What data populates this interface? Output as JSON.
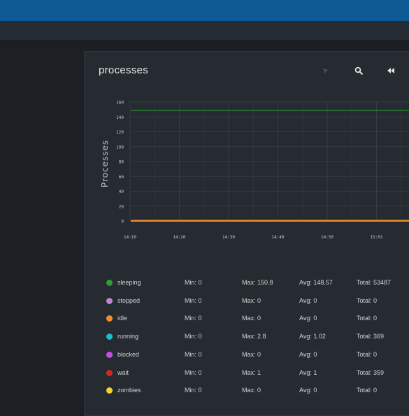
{
  "panel": {
    "title": "processes"
  },
  "toolbar": {
    "icons": [
      "pointer-icon",
      "zoom-icon",
      "rewind-icon"
    ]
  },
  "colors": {
    "topbar": "#0f5a94",
    "background": "#1c1f24",
    "panel": "#262b31"
  },
  "chart_data": {
    "type": "line",
    "ylabel": "Processes",
    "ylim": [
      0,
      160
    ],
    "yticks": [
      "0",
      "20",
      "40",
      "60",
      "80",
      "100",
      "120",
      "140",
      "160"
    ],
    "xticks": [
      "14:10",
      "14:20",
      "14:30",
      "14:40",
      "14:50",
      "15:01"
    ],
    "grid": true,
    "series": [
      {
        "name": "sleeping",
        "color": "#2ca02c",
        "values": [
          149,
          149,
          149,
          149,
          149,
          149,
          149,
          149,
          149,
          149,
          149
        ]
      },
      {
        "name": "stopped",
        "color": "#c086c9",
        "values": [
          0,
          0,
          0,
          0,
          0,
          0,
          0,
          0,
          0,
          0,
          0
        ]
      },
      {
        "name": "idle",
        "color": "#f28e2b",
        "values": [
          0,
          0,
          0,
          0,
          0,
          0,
          0,
          0,
          0,
          0,
          0
        ]
      },
      {
        "name": "running",
        "color": "#17becf",
        "values": [
          1,
          1,
          1,
          1,
          1,
          1,
          1,
          1,
          1,
          1,
          1
        ]
      },
      {
        "name": "blocked",
        "color": "#c54ce6",
        "values": [
          0,
          0,
          0,
          0,
          0,
          0,
          0,
          0,
          0,
          0,
          0
        ]
      },
      {
        "name": "wait",
        "color": "#d62728",
        "values": [
          1,
          1,
          1,
          1,
          1,
          1,
          1,
          1,
          1,
          1,
          1
        ]
      },
      {
        "name": "zombies",
        "color": "#f2d22e",
        "values": [
          0,
          0,
          0,
          0,
          0,
          0,
          0,
          0,
          0,
          0,
          0
        ]
      }
    ]
  },
  "legend": [
    {
      "name": "sleeping",
      "color": "#2ca02c",
      "min": "Min: 0",
      "max": "Max: 150.8",
      "avg": "Avg: 148.57",
      "total": "Total: 53487"
    },
    {
      "name": "stopped",
      "color": "#c086c9",
      "min": "Min: 0",
      "max": "Max: 0",
      "avg": "Avg: 0",
      "total": "Total: 0"
    },
    {
      "name": "idle",
      "color": "#f28e2b",
      "min": "Min: 0",
      "max": "Max: 0",
      "avg": "Avg: 0",
      "total": "Total: 0"
    },
    {
      "name": "running",
      "color": "#17becf",
      "min": "Min: 0",
      "max": "Max: 2.8",
      "avg": "Avg: 1.02",
      "total": "Total: 369"
    },
    {
      "name": "blocked",
      "color": "#c54ce6",
      "min": "Min: 0",
      "max": "Max: 0",
      "avg": "Avg: 0",
      "total": "Total: 0"
    },
    {
      "name": "wait",
      "color": "#d62728",
      "min": "Min: 0",
      "max": "Max: 1",
      "avg": "Avg: 1",
      "total": "Total: 359"
    },
    {
      "name": "zombies",
      "color": "#f2d22e",
      "min": "Min: 0",
      "max": "Max: 0",
      "avg": "Avg: 0",
      "total": "Total: 0"
    }
  ]
}
